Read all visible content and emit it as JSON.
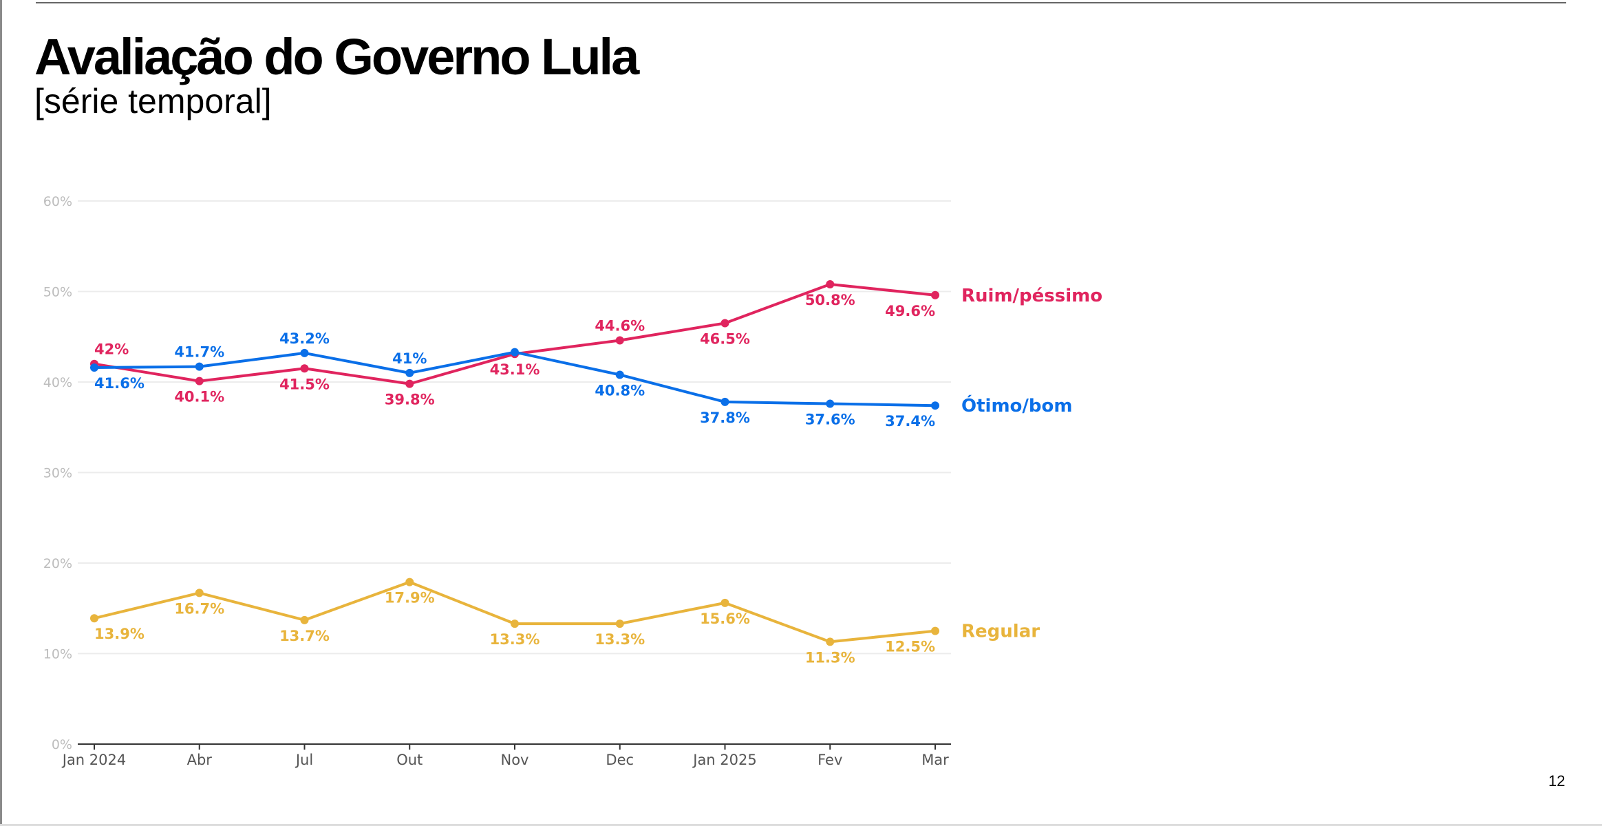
{
  "header": {
    "title": "Avaliação do Governo Lula",
    "subtitle": "[série temporal]"
  },
  "page_number": "12",
  "chart_data": {
    "type": "line",
    "title": "Avaliação do Governo Lula",
    "subtitle": "[série temporal]",
    "xlabel": "",
    "ylabel": "",
    "categories": [
      "Jan 2024",
      "Abr",
      "Jul",
      "Out",
      "Nov",
      "Dec",
      "Jan 2025",
      "Fev",
      "Mar"
    ],
    "ylim": [
      0,
      60
    ],
    "yticks": [
      0,
      10,
      20,
      30,
      40,
      50,
      60
    ],
    "ytick_labels": [
      "0%",
      "10%",
      "20%",
      "30%",
      "40%",
      "50%",
      "60%"
    ],
    "grid": true,
    "legend": "inline-right",
    "series": [
      {
        "name": "Ruim/péssimo",
        "color": "#e0245e",
        "values": [
          42,
          40.1,
          41.5,
          39.8,
          43.1,
          44.6,
          46.5,
          50.8,
          49.6
        ],
        "labels": [
          "42%",
          "40.1%",
          "41.5%",
          "39.8%",
          "43.1%",
          "44.6%",
          "46.5%",
          "50.8%",
          "49.6%"
        ]
      },
      {
        "name": "Ótimo/bom",
        "color": "#0a6fe8",
        "values": [
          41.6,
          41.7,
          43.2,
          41,
          43.3,
          40.8,
          37.8,
          37.6,
          37.4
        ],
        "labels": [
          "41.6%",
          "41.7%",
          "43.2%",
          "41%",
          "",
          "40.8%",
          "37.8%",
          "37.6%",
          "37.4%"
        ]
      },
      {
        "name": "Regular",
        "color": "#e8b43c",
        "values": [
          13.9,
          16.7,
          13.7,
          17.9,
          13.3,
          13.3,
          15.6,
          11.3,
          12.5
        ],
        "labels": [
          "13.9%",
          "16.7%",
          "13.7%",
          "17.9%",
          "13.3%",
          "13.3%",
          "15.6%",
          "11.3%",
          "12.5%"
        ]
      }
    ]
  }
}
